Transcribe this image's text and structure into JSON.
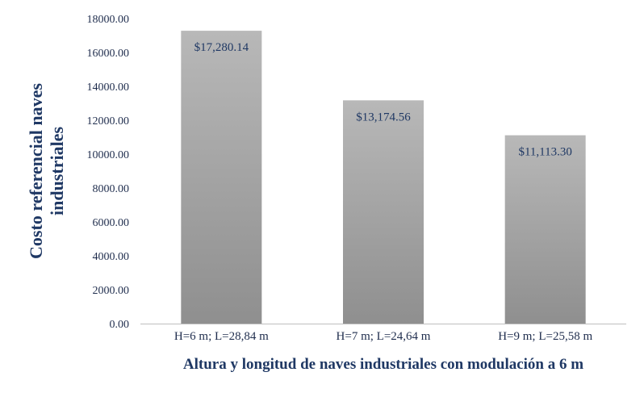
{
  "chart_data": {
    "type": "bar",
    "categories": [
      "H=6 m; L=28,84 m",
      "H=7 m; L=24,64 m",
      "H=9 m; L=25,58 m"
    ],
    "values": [
      17280.14,
      13174.56,
      11113.3
    ],
    "data_labels": [
      "$17,280.14",
      "$13,174.56",
      "$11,113.30"
    ],
    "y_ticks": [
      "0.00",
      "2000.00",
      "4000.00",
      "6000.00",
      "8000.00",
      "10000.00",
      "12000.00",
      "14000.00",
      "16000.00",
      "18000.00"
    ],
    "ylim": [
      0,
      18000
    ],
    "ylabel_lines": [
      "Costo referencial naves",
      "industriales"
    ],
    "xlabel": "Altura y longitud de naves industriales  con modulación a 6 m",
    "grid": false,
    "legend": "none",
    "bar_color_top": "#b8b8b8",
    "bar_color_bottom": "#8f8f8f",
    "axis_color": "#bfbfbf",
    "text_color": "#1f3864"
  }
}
